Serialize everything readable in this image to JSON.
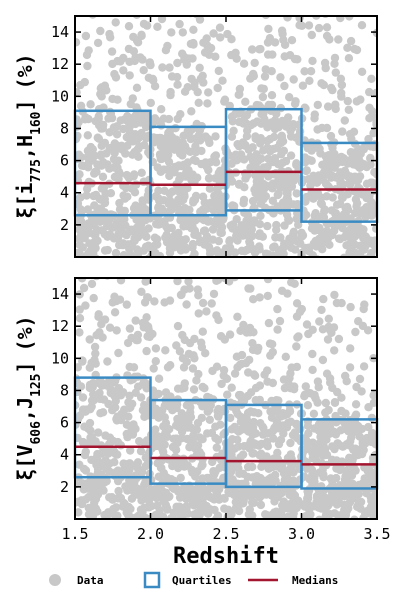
{
  "colors": {
    "data": "#c8c8c8",
    "quartiles": "#3a8bc4",
    "medians": "#a3152f",
    "axis": "#000000"
  },
  "chart_data": [
    {
      "type": "scatter",
      "panel": "top",
      "ylabel": "ξ[i775,H160] (%)",
      "ylabel_parts": {
        "prefix": "ξ[i",
        "sub1": "775",
        "mid": ",H",
        "sub2": "160",
        "suffix": "]",
        "unit": "(%)"
      },
      "xlim": [
        1.5,
        3.5
      ],
      "ylim": [
        0,
        15
      ],
      "yticks": [
        "2",
        "4",
        "6",
        "8",
        "10",
        "12",
        "14"
      ],
      "bins": [
        [
          1.5,
          2.0
        ],
        [
          2.0,
          2.5
        ],
        [
          2.5,
          3.0
        ],
        [
          3.0,
          3.5
        ]
      ],
      "q1": [
        2.6,
        2.6,
        2.9,
        2.2
      ],
      "median": [
        4.6,
        4.5,
        5.3,
        4.2
      ],
      "q3": [
        9.1,
        8.1,
        9.2,
        7.1
      ]
    },
    {
      "type": "scatter",
      "panel": "bottom",
      "ylabel": "ξ[V606,J125] (%)",
      "ylabel_parts": {
        "prefix": "ξ[V",
        "sub1": "606",
        "mid": ",J",
        "sub2": "125",
        "suffix": "]",
        "unit": "(%)"
      },
      "xlabel": "Redshift",
      "xlim": [
        1.5,
        3.5
      ],
      "ylim": [
        0,
        15
      ],
      "xticks": [
        "1.5",
        "2.0",
        "2.5",
        "3.0",
        "3.5"
      ],
      "yticks": [
        "2",
        "4",
        "6",
        "8",
        "10",
        "12",
        "14"
      ],
      "bins": [
        [
          1.5,
          2.0
        ],
        [
          2.0,
          2.5
        ],
        [
          2.5,
          3.0
        ],
        [
          3.0,
          3.5
        ]
      ],
      "q1": [
        2.6,
        2.2,
        2.0,
        1.9
      ],
      "median": [
        4.5,
        3.8,
        3.6,
        3.4
      ],
      "q3": [
        8.8,
        7.4,
        7.1,
        6.2
      ]
    }
  ],
  "legend": {
    "items": [
      {
        "label": "Data",
        "marker": "dot"
      },
      {
        "label": "Quartiles",
        "marker": "square"
      },
      {
        "label": "Medians",
        "marker": "line"
      }
    ]
  }
}
